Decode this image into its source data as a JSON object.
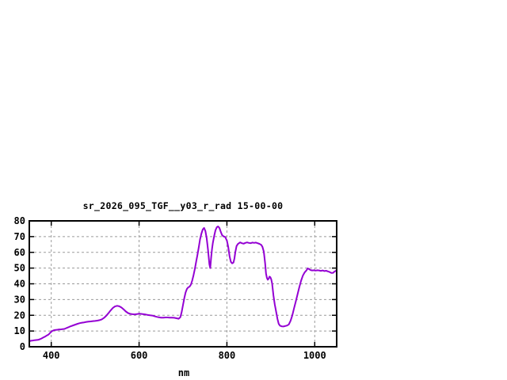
{
  "window": {
    "background_color": "#ffffff"
  },
  "chart_data": {
    "type": "line",
    "title": "sr_2026_095_TGF__y03_r_rad 15-00-00",
    "xlabel": "nm",
    "ylabel": "",
    "xlim": [
      350,
      1050
    ],
    "ylim": [
      0,
      80
    ],
    "x_ticks": [
      400,
      600,
      800,
      1000
    ],
    "y_ticks": [
      0,
      10,
      20,
      30,
      40,
      50,
      60,
      70,
      80
    ],
    "grid": true,
    "grid_style": "dashed",
    "legend": false,
    "series": [
      {
        "name": "sr_2026_095_TGF__y03_r_rad",
        "color": "#9400d3",
        "points": [
          [
            350,
            3.5
          ],
          [
            354,
            3.8
          ],
          [
            358,
            4.0
          ],
          [
            362,
            4.2
          ],
          [
            366,
            4.3
          ],
          [
            370,
            4.4
          ],
          [
            374,
            4.8
          ],
          [
            378,
            5.3
          ],
          [
            382,
            5.9
          ],
          [
            386,
            6.5
          ],
          [
            390,
            7.2
          ],
          [
            394,
            7.8
          ],
          [
            398,
            9.0
          ],
          [
            402,
            10.0
          ],
          [
            406,
            10.5
          ],
          [
            410,
            10.7
          ],
          [
            414,
            10.8
          ],
          [
            418,
            11.0
          ],
          [
            422,
            11.0
          ],
          [
            426,
            11.2
          ],
          [
            430,
            11.3
          ],
          [
            434,
            11.8
          ],
          [
            438,
            12.3
          ],
          [
            442,
            12.8
          ],
          [
            446,
            13.2
          ],
          [
            450,
            13.6
          ],
          [
            455,
            14.1
          ],
          [
            460,
            14.6
          ],
          [
            465,
            15.0
          ],
          [
            470,
            15.3
          ],
          [
            475,
            15.5
          ],
          [
            480,
            15.8
          ],
          [
            485,
            16.0
          ],
          [
            490,
            16.1
          ],
          [
            495,
            16.3
          ],
          [
            500,
            16.4
          ],
          [
            505,
            16.6
          ],
          [
            510,
            16.9
          ],
          [
            515,
            17.4
          ],
          [
            520,
            18.3
          ],
          [
            525,
            19.6
          ],
          [
            530,
            21.3
          ],
          [
            535,
            23.0
          ],
          [
            540,
            24.6
          ],
          [
            545,
            25.6
          ],
          [
            550,
            26.0
          ],
          [
            555,
            25.7
          ],
          [
            560,
            24.9
          ],
          [
            565,
            23.7
          ],
          [
            570,
            22.4
          ],
          [
            575,
            21.4
          ],
          [
            580,
            20.9
          ],
          [
            585,
            20.7
          ],
          [
            590,
            20.6
          ],
          [
            595,
            20.8
          ],
          [
            600,
            21.0
          ],
          [
            605,
            20.9
          ],
          [
            610,
            20.7
          ],
          [
            615,
            20.5
          ],
          [
            620,
            20.2
          ],
          [
            625,
            20.0
          ],
          [
            630,
            19.8
          ],
          [
            635,
            19.4
          ],
          [
            640,
            19.0
          ],
          [
            645,
            18.7
          ],
          [
            650,
            18.5
          ],
          [
            655,
            18.5
          ],
          [
            660,
            18.6
          ],
          [
            665,
            18.6
          ],
          [
            670,
            18.5
          ],
          [
            675,
            18.5
          ],
          [
            680,
            18.4
          ],
          [
            685,
            18.1
          ],
          [
            690,
            17.8
          ],
          [
            694,
            18.8
          ],
          [
            697,
            22.0
          ],
          [
            700,
            26.5
          ],
          [
            703,
            31.0
          ],
          [
            706,
            34.5
          ],
          [
            709,
            36.8
          ],
          [
            712,
            37.8
          ],
          [
            715,
            38.2
          ],
          [
            718,
            39.5
          ],
          [
            721,
            42.0
          ],
          [
            724,
            45.5
          ],
          [
            727,
            49.5
          ],
          [
            730,
            54.0
          ],
          [
            733,
            58.5
          ],
          [
            736,
            63.5
          ],
          [
            739,
            68.5
          ],
          [
            742,
            72.0
          ],
          [
            745,
            74.5
          ],
          [
            748,
            75.5
          ],
          [
            751,
            73.5
          ],
          [
            754,
            69.0
          ],
          [
            757,
            61.5
          ],
          [
            760,
            52.5
          ],
          [
            762,
            50.0
          ],
          [
            764,
            56.5
          ],
          [
            766,
            62.0
          ],
          [
            768,
            66.0
          ],
          [
            771,
            70.5
          ],
          [
            774,
            74.0
          ],
          [
            777,
            76.0
          ],
          [
            780,
            76.5
          ],
          [
            783,
            75.5
          ],
          [
            786,
            73.0
          ],
          [
            789,
            71.0
          ],
          [
            792,
            70.2
          ],
          [
            796,
            69.8
          ],
          [
            800,
            67.5
          ],
          [
            803,
            63.5
          ],
          [
            806,
            57.5
          ],
          [
            809,
            54.0
          ],
          [
            812,
            53.0
          ],
          [
            815,
            53.5
          ],
          [
            817,
            56.0
          ],
          [
            819,
            60.0
          ],
          [
            822,
            64.0
          ],
          [
            825,
            65.3
          ],
          [
            830,
            66.3
          ],
          [
            834,
            65.8
          ],
          [
            838,
            65.5
          ],
          [
            842,
            66.0
          ],
          [
            846,
            66.3
          ],
          [
            850,
            66.0
          ],
          [
            854,
            65.8
          ],
          [
            858,
            66.2
          ],
          [
            862,
            66.0
          ],
          [
            866,
            66.2
          ],
          [
            870,
            65.8
          ],
          [
            874,
            65.4
          ],
          [
            878,
            64.8
          ],
          [
            881,
            63.5
          ],
          [
            884,
            60.5
          ],
          [
            887,
            53.0
          ],
          [
            889,
            46.5
          ],
          [
            891,
            43.8
          ],
          [
            893,
            42.6
          ],
          [
            895,
            43.2
          ],
          [
            897,
            44.6
          ],
          [
            899,
            44.2
          ],
          [
            901,
            42.8
          ],
          [
            903,
            40.2
          ],
          [
            906,
            32.5
          ],
          [
            909,
            27.0
          ],
          [
            912,
            22.5
          ],
          [
            915,
            17.8
          ],
          [
            918,
            14.6
          ],
          [
            921,
            13.4
          ],
          [
            925,
            13.0
          ],
          [
            929,
            12.9
          ],
          [
            933,
            13.2
          ],
          [
            937,
            13.5
          ],
          [
            941,
            14.2
          ],
          [
            945,
            16.5
          ],
          [
            949,
            20.0
          ],
          [
            953,
            24.5
          ],
          [
            957,
            29.0
          ],
          [
            961,
            33.5
          ],
          [
            965,
            38.0
          ],
          [
            969,
            42.0
          ],
          [
            973,
            45.2
          ],
          [
            977,
            47.2
          ],
          [
            981,
            48.5
          ],
          [
            984,
            49.8
          ],
          [
            987,
            49.4
          ],
          [
            990,
            48.8
          ],
          [
            994,
            48.5
          ],
          [
            998,
            48.6
          ],
          [
            1002,
            48.4
          ],
          [
            1006,
            48.6
          ],
          [
            1010,
            48.5
          ],
          [
            1014,
            48.2
          ],
          [
            1018,
            48.5
          ],
          [
            1022,
            48.1
          ],
          [
            1026,
            48.3
          ],
          [
            1030,
            47.9
          ],
          [
            1034,
            47.5
          ],
          [
            1038,
            46.9
          ],
          [
            1042,
            47.0
          ],
          [
            1045,
            47.8
          ],
          [
            1048,
            48.2
          ],
          [
            1050,
            48.8
          ]
        ]
      }
    ]
  },
  "style": {
    "line_color": "#9400d3",
    "grid_color": "#9a9a9a",
    "border_color": "#000000",
    "text_color": "#000000"
  }
}
